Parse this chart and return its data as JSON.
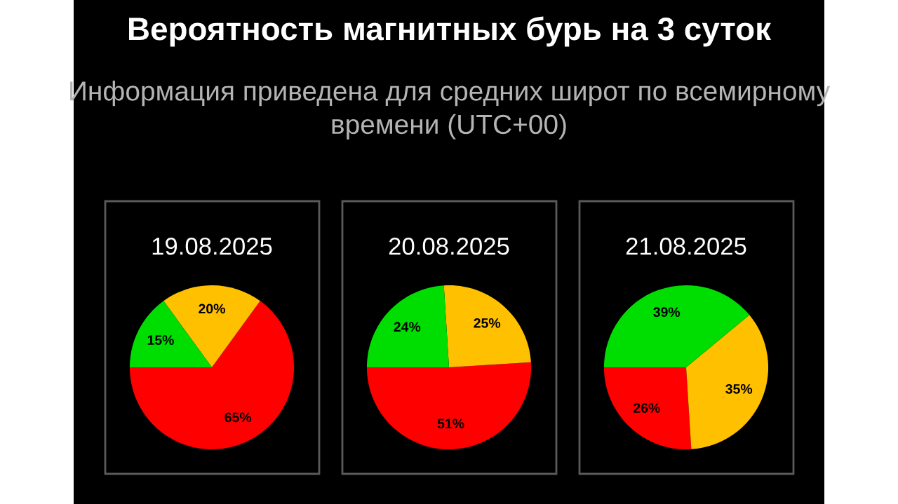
{
  "chart_data": [
    {
      "type": "other",
      "title": "Вероятность магнитных бурь на 3 суток",
      "subtitle": "Информация приведена для средних широт по всемирному времени (UTC+00)"
    },
    {
      "type": "pie",
      "title": "19.08.2025",
      "categories": [
        null,
        null,
        null
      ],
      "values": [
        65,
        20,
        15
      ],
      "colors": [
        "#ff0000",
        "#ffc000",
        "#00dd00"
      ],
      "value_labels": [
        "65%",
        "20%",
        "15%"
      ]
    },
    {
      "type": "pie",
      "title": "20.08.2025",
      "categories": [
        null,
        null,
        null
      ],
      "values": [
        51,
        25,
        24
      ],
      "colors": [
        "#ff0000",
        "#ffc000",
        "#00dd00"
      ],
      "value_labels": [
        "51%",
        "25%",
        "24%"
      ]
    },
    {
      "type": "pie",
      "title": "21.08.2025",
      "categories": [
        null,
        null,
        null
      ],
      "values": [
        26,
        35,
        39
      ],
      "colors": [
        "#ff0000",
        "#ffc000",
        "#00dd00"
      ],
      "value_labels": [
        "26%",
        "35%",
        "39%"
      ]
    }
  ]
}
